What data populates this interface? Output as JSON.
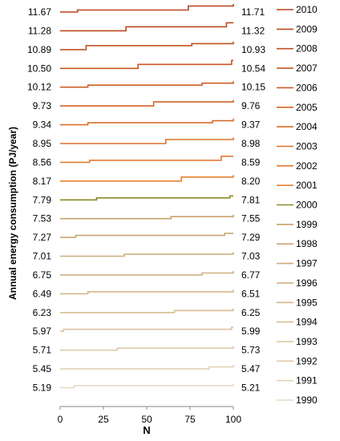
{
  "chart_data": {
    "type": "line",
    "xlabel": "N",
    "ylabel": "Annual energy consumption (PJ/year)",
    "xlim": [
      0,
      100
    ],
    "xticks": [
      "0",
      "25",
      "50",
      "75",
      "100"
    ],
    "grid": false,
    "legend_position": "right",
    "series": [
      {
        "name": "2010",
        "start": "11.67",
        "end": "11.71",
        "color": "#b8431a",
        "steps": [
          [
            0,
            11.67
          ],
          [
            10,
            11.68
          ],
          [
            74,
            11.7
          ],
          [
            100,
            11.71
          ]
        ]
      },
      {
        "name": "2009",
        "start": "11.28",
        "end": "11.32",
        "color": "#bd4a1f",
        "steps": [
          [
            0,
            11.28
          ],
          [
            38,
            11.3
          ],
          [
            96,
            11.32
          ],
          [
            100,
            11.32
          ]
        ]
      },
      {
        "name": "2008",
        "start": "10.89",
        "end": "10.93",
        "color": "#c25120",
        "steps": [
          [
            0,
            10.89
          ],
          [
            15,
            10.91
          ],
          [
            76,
            10.92
          ],
          [
            100,
            10.93
          ]
        ]
      },
      {
        "name": "2007",
        "start": "10.50",
        "end": "10.54",
        "color": "#c75822",
        "steps": [
          [
            0,
            10.5
          ],
          [
            45,
            10.52
          ],
          [
            99,
            10.54
          ],
          [
            100,
            10.54
          ]
        ]
      },
      {
        "name": "2006",
        "start": "10.12",
        "end": "10.15",
        "color": "#cc5f25",
        "steps": [
          [
            0,
            10.12
          ],
          [
            16,
            10.13
          ],
          [
            82,
            10.14
          ],
          [
            100,
            10.15
          ]
        ]
      },
      {
        "name": "2005",
        "start": "9.73",
        "end": "9.76",
        "color": "#d26628",
        "steps": [
          [
            0,
            9.73
          ],
          [
            54,
            9.75
          ],
          [
            100,
            9.76
          ]
        ]
      },
      {
        "name": "2004",
        "start": "9.34",
        "end": "9.37",
        "color": "#d76d2b",
        "steps": [
          [
            0,
            9.34
          ],
          [
            16,
            9.35
          ],
          [
            88,
            9.36
          ],
          [
            100,
            9.37
          ]
        ]
      },
      {
        "name": "2003",
        "start": "8.95",
        "end": "8.98",
        "color": "#dc742e",
        "steps": [
          [
            0,
            8.95
          ],
          [
            61,
            8.97
          ],
          [
            100,
            8.98
          ]
        ]
      },
      {
        "name": "2002",
        "start": "8.56",
        "end": "8.59",
        "color": "#e07b31",
        "steps": [
          [
            0,
            8.56
          ],
          [
            17,
            8.57
          ],
          [
            93,
            8.59
          ],
          [
            100,
            8.59
          ]
        ]
      },
      {
        "name": "2001",
        "start": "8.17",
        "end": "8.20",
        "color": "#e58234",
        "steps": [
          [
            0,
            8.17
          ],
          [
            70,
            8.19
          ],
          [
            100,
            8.2
          ]
        ]
      },
      {
        "name": "2000",
        "start": "7.79",
        "end": "7.81",
        "color": "#8c8a28",
        "steps": [
          [
            0,
            7.79
          ],
          [
            21,
            7.8
          ],
          [
            98,
            7.81
          ],
          [
            100,
            7.81
          ]
        ]
      },
      {
        "name": "1999",
        "start": "7.53",
        "end": "7.55",
        "color": "#c9a06a",
        "steps": [
          [
            0,
            7.53
          ],
          [
            64,
            7.54
          ],
          [
            100,
            7.55
          ]
        ]
      },
      {
        "name": "1998",
        "start": "7.27",
        "end": "7.29",
        "color": "#c8a571",
        "steps": [
          [
            0,
            7.27
          ],
          [
            9,
            7.28
          ],
          [
            95,
            7.29
          ],
          [
            100,
            7.29
          ]
        ]
      },
      {
        "name": "1997",
        "start": "7.01",
        "end": "7.03",
        "color": "#ccaa7a",
        "steps": [
          [
            0,
            7.01
          ],
          [
            37,
            7.02
          ],
          [
            100,
            7.03
          ]
        ]
      },
      {
        "name": "1996",
        "start": "6.75",
        "end": "6.77",
        "color": "#d0b183",
        "steps": [
          [
            0,
            6.75
          ],
          [
            82,
            6.76
          ],
          [
            100,
            6.77
          ]
        ]
      },
      {
        "name": "1995",
        "start": "6.49",
        "end": "6.51",
        "color": "#d3b78c",
        "steps": [
          [
            0,
            6.49
          ],
          [
            16,
            6.5
          ],
          [
            100,
            6.51
          ]
        ]
      },
      {
        "name": "1994",
        "start": "6.23",
        "end": "6.25",
        "color": "#d7bd95",
        "steps": [
          [
            0,
            6.23
          ],
          [
            66,
            6.24
          ],
          [
            100,
            6.25
          ]
        ]
      },
      {
        "name": "1993",
        "start": "5.97",
        "end": "5.99",
        "color": "#dbc39f",
        "steps": [
          [
            0,
            5.97
          ],
          [
            2,
            5.98
          ],
          [
            99,
            5.99
          ],
          [
            100,
            5.99
          ]
        ]
      },
      {
        "name": "1992",
        "start": "5.71",
        "end": "5.73",
        "color": "#dfcaaa",
        "steps": [
          [
            0,
            5.71
          ],
          [
            33,
            5.72
          ],
          [
            100,
            5.73
          ]
        ]
      },
      {
        "name": "1991",
        "start": "5.45",
        "end": "5.47",
        "color": "#e3d1b5",
        "steps": [
          [
            0,
            5.45
          ],
          [
            86,
            5.46
          ],
          [
            100,
            5.47
          ]
        ]
      },
      {
        "name": "1990",
        "start": "5.19",
        "end": "5.21",
        "color": "#e8d9c2",
        "steps": [
          [
            0,
            5.19
          ],
          [
            8,
            5.2
          ],
          [
            100,
            5.21
          ]
        ]
      }
    ]
  }
}
